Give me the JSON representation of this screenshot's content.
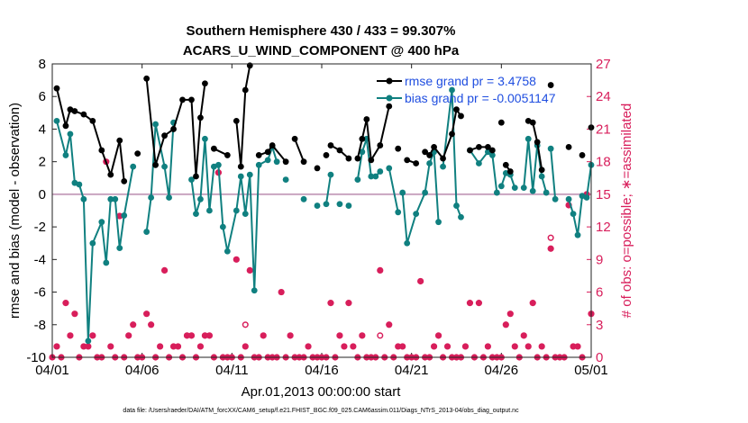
{
  "chart_data": {
    "type": "line",
    "title": "Southern Hemisphere 430 / 433 = 99.307%",
    "subtitle": "ACARS_U_WIND_COMPONENT @ 400 hPa",
    "xlabel": "Apr.01,2013 00:00:00 start",
    "ylabel_left": "rmse and bias (model - observation)",
    "ylabel_right": "# of obs: o=possible; ∗=assimilated",
    "x_tick_labels": [
      "04/01",
      "04/06",
      "04/11",
      "04/16",
      "04/21",
      "04/26",
      "05/01"
    ],
    "x_tick_days": [
      0,
      5,
      10,
      15,
      20,
      25,
      30
    ],
    "xlim": [
      0,
      30
    ],
    "ylim_left": [
      -10,
      8
    ],
    "y_ticks_left": [
      -10,
      -8,
      -6,
      -4,
      -2,
      0,
      2,
      4,
      6,
      8
    ],
    "ylim_right": [
      0,
      27
    ],
    "y_ticks_right": [
      0,
      3,
      6,
      9,
      12,
      15,
      18,
      21,
      24,
      27
    ],
    "zero_line": 0,
    "colors": {
      "rmse": "#000000",
      "bias": "#108080",
      "obs": "#d81e5b",
      "legend_text": "#1f4ee0"
    },
    "legend": [
      {
        "label": "rmse grand pr = 3.4758",
        "series": "rmse"
      },
      {
        "label": "bias grand pr = -0.0051147",
        "series": "bias"
      }
    ],
    "series": [
      {
        "name": "rmse",
        "points": [
          [
            0.25,
            6.5
          ],
          [
            0.75,
            4.2
          ],
          [
            1.0,
            5.2
          ],
          [
            1.25,
            5.1
          ],
          [
            1.75,
            4.9
          ],
          [
            2.25,
            4.5
          ],
          [
            2.75,
            2.7
          ],
          [
            3.25,
            1.2
          ],
          [
            3.75,
            3.3
          ],
          [
            4.0,
            0.8
          ],
          [
            4.75,
            2.5
          ],
          [
            5.25,
            7.1
          ],
          [
            5.75,
            1.8
          ],
          [
            6.25,
            3.6
          ],
          [
            6.75,
            4.0
          ],
          [
            7.25,
            5.8
          ],
          [
            7.75,
            5.8
          ],
          [
            8.0,
            1.1
          ],
          [
            8.25,
            4.7
          ],
          [
            8.5,
            6.8
          ],
          [
            9.0,
            2.8
          ],
          [
            9.75,
            2.4
          ],
          [
            10.25,
            4.5
          ],
          [
            10.5,
            1.7
          ],
          [
            10.75,
            6.4
          ],
          [
            11.0,
            7.9
          ],
          [
            11.5,
            2.4
          ],
          [
            12.0,
            2.6
          ],
          [
            12.25,
            3.0
          ],
          [
            13.0,
            2.0
          ],
          [
            13.5,
            3.4
          ],
          [
            14.0,
            2.0
          ],
          [
            14.75,
            1.6
          ],
          [
            15.25,
            2.4
          ],
          [
            15.5,
            3.0
          ],
          [
            16.0,
            2.7
          ],
          [
            16.5,
            2.2
          ],
          [
            17.0,
            2.2
          ],
          [
            17.25,
            3.4
          ],
          [
            17.5,
            4.6
          ],
          [
            17.75,
            2.1
          ],
          [
            18.25,
            3.0
          ],
          [
            18.75,
            5.4
          ],
          [
            19.25,
            2.8
          ],
          [
            19.75,
            2.1
          ],
          [
            20.25,
            1.9
          ],
          [
            20.75,
            2.6
          ],
          [
            21.0,
            2.4
          ],
          [
            21.25,
            2.9
          ],
          [
            21.75,
            2.2
          ],
          [
            22.25,
            3.7
          ],
          [
            22.5,
            5.2
          ],
          [
            22.75,
            4.8
          ],
          [
            23.25,
            2.7
          ],
          [
            23.75,
            2.9
          ],
          [
            24.25,
            2.9
          ],
          [
            24.5,
            2.7
          ],
          [
            25.0,
            4.4
          ],
          [
            25.25,
            1.8
          ],
          [
            25.5,
            1.4
          ],
          [
            26.5,
            4.5
          ],
          [
            26.75,
            4.4
          ],
          [
            27.0,
            3.2
          ],
          [
            27.25,
            1.5
          ],
          [
            27.75,
            6.7
          ],
          [
            28.75,
            2.9
          ],
          [
            29.5,
            2.4
          ],
          [
            30.0,
            4.1
          ]
        ],
        "gaps_after": [
          4.0,
          4.75,
          8.5,
          9.75,
          11.0,
          13.0,
          14.0,
          14.75,
          15.25,
          16.5,
          18.75,
          19.25,
          20.25,
          22.75,
          24.5,
          25.0,
          25.5,
          27.25,
          27.75,
          28.75,
          29.5
        ]
      },
      {
        "name": "bias",
        "points": [
          [
            0.25,
            4.5
          ],
          [
            0.75,
            2.4
          ],
          [
            1.0,
            3.7
          ],
          [
            1.25,
            0.7
          ],
          [
            1.5,
            0.6
          ],
          [
            1.75,
            -0.3
          ],
          [
            2.0,
            -9.0
          ],
          [
            2.25,
            -3.0
          ],
          [
            2.75,
            -1.7
          ],
          [
            3.0,
            -4.2
          ],
          [
            3.25,
            -0.3
          ],
          [
            3.5,
            -0.3
          ],
          [
            3.75,
            -3.3
          ],
          [
            4.0,
            -1.3
          ],
          [
            4.5,
            1.7
          ],
          [
            5.25,
            -2.3
          ],
          [
            5.5,
            -0.2
          ],
          [
            5.75,
            4.3
          ],
          [
            6.25,
            1.7
          ],
          [
            6.5,
            -0.2
          ],
          [
            6.75,
            4.4
          ],
          [
            7.75,
            0.9
          ],
          [
            8.0,
            -1.2
          ],
          [
            8.25,
            -0.3
          ],
          [
            8.5,
            3.4
          ],
          [
            8.75,
            -1.0
          ],
          [
            9.0,
            1.7
          ],
          [
            9.25,
            1.8
          ],
          [
            9.5,
            -2.0
          ],
          [
            9.75,
            -3.5
          ],
          [
            10.25,
            -1.0
          ],
          [
            10.5,
            1.1
          ],
          [
            10.75,
            -1.2
          ],
          [
            11.0,
            1.2
          ],
          [
            11.25,
            -5.9
          ],
          [
            11.5,
            1.8
          ],
          [
            12.0,
            2.1
          ],
          [
            12.25,
            2.9
          ],
          [
            12.5,
            2.0
          ],
          [
            13.0,
            0.9
          ],
          [
            14.0,
            -0.3
          ],
          [
            14.75,
            -0.7
          ],
          [
            15.25,
            -0.6
          ],
          [
            15.5,
            1.2
          ],
          [
            16.0,
            -0.6
          ],
          [
            16.5,
            -0.7
          ],
          [
            17.0,
            0.9
          ],
          [
            17.25,
            2.6
          ],
          [
            17.5,
            3.4
          ],
          [
            17.75,
            1.1
          ],
          [
            18.0,
            1.1
          ],
          [
            18.25,
            1.4
          ],
          [
            18.75,
            1.6
          ],
          [
            19.25,
            -1.1
          ],
          [
            19.5,
            0.1
          ],
          [
            19.75,
            -3.0
          ],
          [
            20.25,
            -1.2
          ],
          [
            20.75,
            0.1
          ],
          [
            21.0,
            1.9
          ],
          [
            21.25,
            2.6
          ],
          [
            21.5,
            -1.7
          ],
          [
            21.75,
            1.7
          ],
          [
            22.25,
            6.4
          ],
          [
            22.5,
            -0.7
          ],
          [
            22.75,
            -1.4
          ],
          [
            23.25,
            2.7
          ],
          [
            23.75,
            1.9
          ],
          [
            24.25,
            2.6
          ],
          [
            24.5,
            2.4
          ],
          [
            24.75,
            0.1
          ],
          [
            25.0,
            0.5
          ],
          [
            25.25,
            1.3
          ],
          [
            25.5,
            1.2
          ],
          [
            25.75,
            0.4
          ],
          [
            26.25,
            0.4
          ],
          [
            26.5,
            3.4
          ],
          [
            26.75,
            0.2
          ],
          [
            27.0,
            3.0
          ],
          [
            27.25,
            1.1
          ],
          [
            27.5,
            0.1
          ],
          [
            27.75,
            2.8
          ],
          [
            28.0,
            -0.3
          ],
          [
            28.75,
            -0.3
          ],
          [
            29.0,
            -1.2
          ],
          [
            29.25,
            -2.5
          ],
          [
            29.5,
            -0.1
          ],
          [
            29.75,
            -0.2
          ],
          [
            30.0,
            1.8
          ]
        ],
        "gaps_after": [
          4.5,
          6.75,
          12.5,
          13.0,
          14.0,
          14.75,
          15.5,
          16.0,
          16.5,
          18.25,
          19.25,
          21.5,
          22.75,
          24.75,
          25.75,
          27.5,
          28.0
        ]
      },
      {
        "name": "obs_assimilated",
        "axis": "right",
        "points": [
          [
            0.0,
            0
          ],
          [
            0.25,
            1
          ],
          [
            0.5,
            0
          ],
          [
            0.75,
            5
          ],
          [
            1.0,
            2
          ],
          [
            1.25,
            4
          ],
          [
            1.5,
            0
          ],
          [
            1.75,
            1
          ],
          [
            2.0,
            1
          ],
          [
            2.25,
            2
          ],
          [
            2.5,
            0
          ],
          [
            2.75,
            0
          ],
          [
            3.0,
            18
          ],
          [
            3.25,
            1
          ],
          [
            3.5,
            0
          ],
          [
            3.75,
            13
          ],
          [
            4.0,
            0
          ],
          [
            4.25,
            2
          ],
          [
            4.5,
            3
          ],
          [
            4.75,
            0
          ],
          [
            5.0,
            0
          ],
          [
            5.25,
            4
          ],
          [
            5.5,
            3
          ],
          [
            5.75,
            0
          ],
          [
            6.0,
            1
          ],
          [
            6.25,
            8
          ],
          [
            6.5,
            0
          ],
          [
            6.75,
            1
          ],
          [
            7.0,
            1
          ],
          [
            7.25,
            0
          ],
          [
            7.5,
            2
          ],
          [
            7.75,
            2
          ],
          [
            8.0,
            0
          ],
          [
            8.25,
            1
          ],
          [
            8.5,
            2
          ],
          [
            8.75,
            2
          ],
          [
            9.0,
            0
          ],
          [
            9.25,
            17
          ],
          [
            9.5,
            0
          ],
          [
            9.75,
            0
          ],
          [
            10.0,
            0
          ],
          [
            10.25,
            9
          ],
          [
            10.5,
            0
          ],
          [
            10.75,
            1
          ],
          [
            11.0,
            8
          ],
          [
            11.25,
            0
          ],
          [
            11.5,
            0
          ],
          [
            11.75,
            2
          ],
          [
            12.0,
            0
          ],
          [
            12.25,
            0
          ],
          [
            12.5,
            0
          ],
          [
            12.75,
            6
          ],
          [
            13.0,
            0
          ],
          [
            13.25,
            2
          ],
          [
            13.5,
            0
          ],
          [
            13.75,
            0
          ],
          [
            14.0,
            0
          ],
          [
            14.25,
            1
          ],
          [
            14.5,
            0
          ],
          [
            14.75,
            0
          ],
          [
            15.0,
            0
          ],
          [
            15.25,
            0
          ],
          [
            15.5,
            5
          ],
          [
            15.75,
            0
          ],
          [
            16.0,
            2
          ],
          [
            16.25,
            1
          ],
          [
            16.5,
            5
          ],
          [
            16.75,
            1
          ],
          [
            17.0,
            0
          ],
          [
            17.25,
            2
          ],
          [
            17.5,
            0
          ],
          [
            17.75,
            0
          ],
          [
            18.0,
            0
          ],
          [
            18.25,
            8
          ],
          [
            18.5,
            0
          ],
          [
            18.75,
            3
          ],
          [
            19.0,
            0
          ],
          [
            19.25,
            1
          ],
          [
            19.5,
            1
          ],
          [
            19.75,
            0
          ],
          [
            20.0,
            0
          ],
          [
            20.25,
            0
          ],
          [
            20.5,
            7
          ],
          [
            20.75,
            0
          ],
          [
            21.0,
            0
          ],
          [
            21.25,
            1
          ],
          [
            21.5,
            2
          ],
          [
            21.75,
            0
          ],
          [
            22.0,
            1
          ],
          [
            22.25,
            0
          ],
          [
            22.5,
            0
          ],
          [
            22.75,
            0
          ],
          [
            23.0,
            1
          ],
          [
            23.25,
            5
          ],
          [
            23.5,
            0
          ],
          [
            23.75,
            5
          ],
          [
            24.0,
            0
          ],
          [
            24.25,
            1
          ],
          [
            24.5,
            0
          ],
          [
            24.75,
            0
          ],
          [
            25.0,
            0
          ],
          [
            25.25,
            3
          ],
          [
            25.5,
            4
          ],
          [
            25.75,
            1
          ],
          [
            26.0,
            0
          ],
          [
            26.25,
            2
          ],
          [
            26.5,
            1
          ],
          [
            26.75,
            5
          ],
          [
            27.0,
            0
          ],
          [
            27.25,
            1
          ],
          [
            27.5,
            0
          ],
          [
            27.75,
            10
          ],
          [
            28.0,
            0
          ],
          [
            28.25,
            0
          ],
          [
            28.5,
            0
          ],
          [
            28.75,
            14
          ],
          [
            29.0,
            1
          ],
          [
            29.25,
            1
          ],
          [
            29.5,
            0
          ],
          [
            29.75,
            15
          ],
          [
            30.0,
            4
          ]
        ]
      },
      {
        "name": "obs_possible",
        "axis": "right",
        "points": [
          [
            9.25,
            17
          ],
          [
            10.75,
            3
          ],
          [
            18.25,
            2
          ],
          [
            27.75,
            11
          ]
        ]
      }
    ],
    "footnote": "data file: /Users/raeder/DAI/ATM_forcXX/CAM6_setup/f.e21.FHIST_BGC.f09_025.CAM6assim.011/Diags_NTrS_2013-04/obs_diag_output.nc"
  }
}
